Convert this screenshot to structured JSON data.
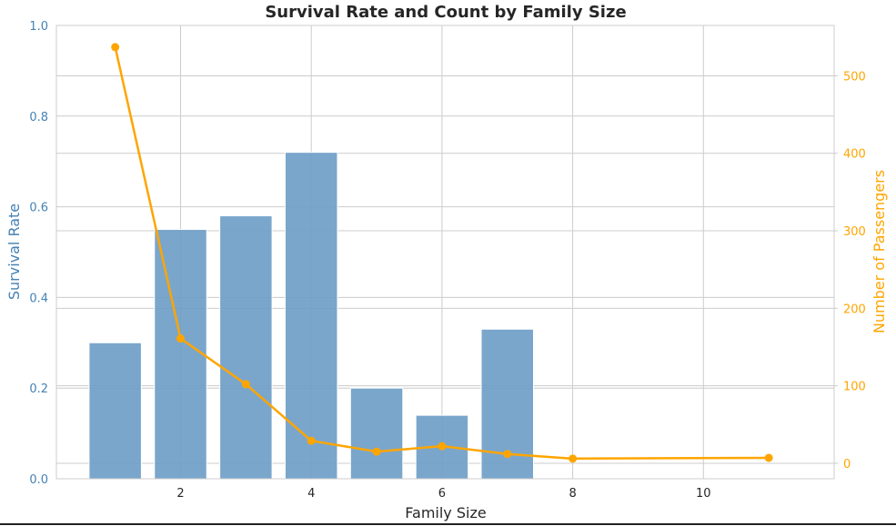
{
  "chart_data": {
    "type": "bar+line",
    "title": "Survival Rate and Count by Family Size",
    "xlabel": "Family Size",
    "ylabel_left": "Survival Rate",
    "ylabel_right": "Number of Passengers",
    "xlim": [
      0.1,
      12
    ],
    "ylim_left": [
      0,
      1.0
    ],
    "ylim_right": [
      -20,
      565
    ],
    "x_ticks": [
      2,
      4,
      6,
      8,
      10
    ],
    "y_ticks_left": [
      0.0,
      0.2,
      0.4,
      0.6,
      0.8,
      1.0
    ],
    "y_ticks_right": [
      0,
      100,
      200,
      300,
      400,
      500
    ],
    "grid": true,
    "colors": {
      "bar": "#6f9ec8",
      "line": "#ffa500",
      "left_axis": "#4682b4",
      "right_axis": "#ffa500",
      "grid": "#cccccc",
      "text": "#262626"
    },
    "series": [
      {
        "kind": "bar",
        "axis": "left",
        "x": [
          1,
          2,
          3,
          4,
          5,
          6,
          7
        ],
        "values": [
          0.3,
          0.55,
          0.58,
          0.72,
          0.2,
          0.14,
          0.33
        ]
      },
      {
        "kind": "line",
        "axis": "right",
        "x": [
          1,
          2,
          3,
          4,
          5,
          6,
          7,
          8,
          11
        ],
        "values": [
          537,
          161,
          102,
          29,
          15,
          22,
          12,
          6,
          7
        ]
      }
    ]
  }
}
